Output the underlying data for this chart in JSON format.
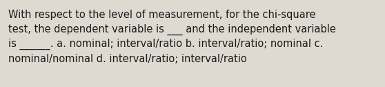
{
  "text": "With respect to the level of measurement, for the chi-square\ntest, the dependent variable is ___ and the independent variable\nis ______. a. nominal; interval/ratio b. interval/ratio; nominal c.\nnominal/nominal d. interval/ratio; interval/ratio",
  "background_color": "#dedad2",
  "text_color": "#1a1a1a",
  "font_size": 10.5,
  "fig_width": 5.58,
  "fig_height": 1.26,
  "dpi": 100
}
